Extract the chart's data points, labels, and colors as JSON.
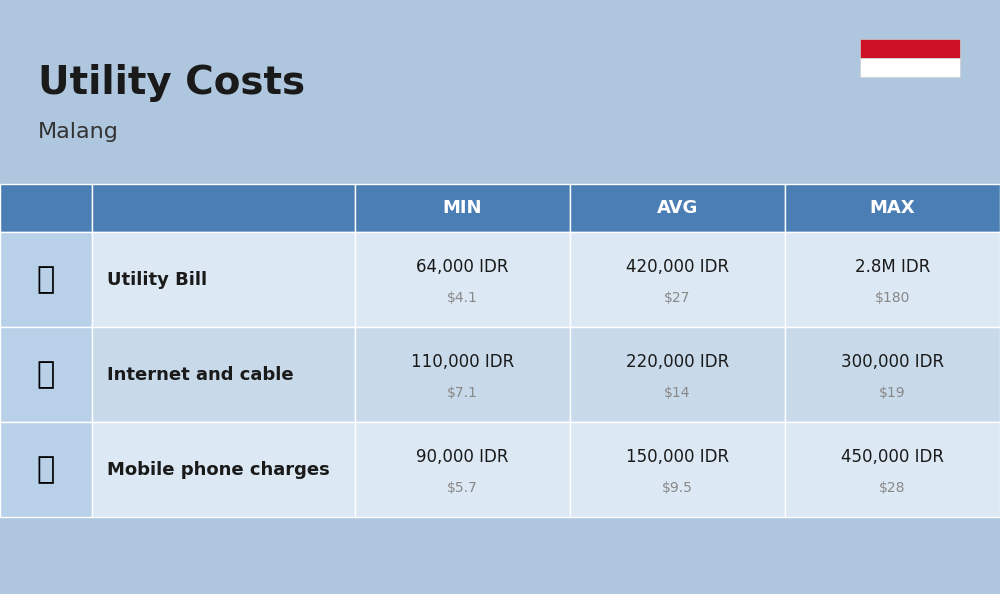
{
  "title": "Utility Costs",
  "subtitle": "Malang",
  "background_color": "#aec6de",
  "header_bg_color": "#4a7eb5",
  "header_text_color": "#ffffff",
  "row_bg_colors": [
    "#dce8f3",
    "#c8daea"
  ],
  "icon_col_bg": "#b8d0e8",
  "name_col_bg": "#dce8f3",
  "header_labels": [
    "MIN",
    "AVG",
    "MAX"
  ],
  "rows": [
    {
      "icon_label": "⚡",
      "name": "Utility Bill",
      "min_idr": "64,000 IDR",
      "min_usd": "$4.1",
      "avg_idr": "420,000 IDR",
      "avg_usd": "$27",
      "max_idr": "2.8M IDR",
      "max_usd": "$180"
    },
    {
      "icon_label": "📶",
      "name": "Internet and cable",
      "min_idr": "110,000 IDR",
      "min_usd": "$7.1",
      "avg_idr": "220,000 IDR",
      "avg_usd": "$14",
      "max_idr": "300,000 IDR",
      "max_usd": "$19"
    },
    {
      "icon_label": "📱",
      "name": "Mobile phone charges",
      "min_idr": "90,000 IDR",
      "min_usd": "$5.7",
      "avg_idr": "150,000 IDR",
      "avg_usd": "$9.5",
      "max_idr": "450,000 IDR",
      "max_usd": "$28"
    }
  ],
  "flag_red": "#ce1126",
  "flag_white": "#ffffff",
  "title_fontsize": 28,
  "subtitle_fontsize": 16,
  "header_fontsize": 13,
  "row_name_fontsize": 13,
  "row_value_fontsize": 12,
  "row_usd_fontsize": 10
}
